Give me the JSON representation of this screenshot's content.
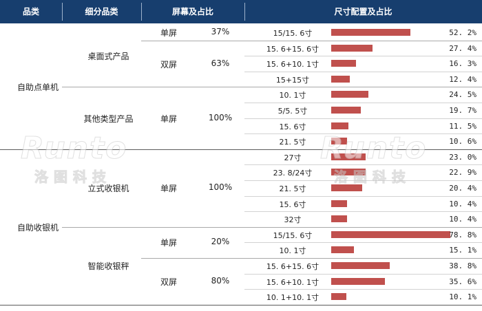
{
  "header": {
    "category": "品类",
    "subcategory": "细分品类",
    "screen": "屏幕及占比",
    "size_config": "尺寸配置及占比"
  },
  "colors": {
    "header_bg": "#173e6e",
    "bar": "#c0504d"
  },
  "watermark": {
    "brand": "Runto",
    "cn": "洛图科技"
  },
  "groups": [
    {
      "name": "自助点单机",
      "subs": [
        {
          "name": "桌面式产品",
          "screens": [
            {
              "type": "单屏",
              "share": "37%",
              "sizes": [
                {
                  "size": "15/15. 6寸",
                  "pct": "52. 2%",
                  "value": 52.2
                }
              ]
            },
            {
              "type": "双屏",
              "share": "63%",
              "sizes": [
                {
                  "size": "15. 6+15. 6寸",
                  "pct": "27. 4%",
                  "value": 27.4
                },
                {
                  "size": "15. 6+10. 1寸",
                  "pct": "16. 3%",
                  "value": 16.3
                },
                {
                  "size": "15+15寸",
                  "pct": "12. 4%",
                  "value": 12.4
                }
              ]
            }
          ]
        },
        {
          "name": "其他类型产品",
          "screens": [
            {
              "type": "单屏",
              "share": "100%",
              "sizes": [
                {
                  "size": "10. 1寸",
                  "pct": "24. 5%",
                  "value": 24.5
                },
                {
                  "size": "5/5. 5寸",
                  "pct": "19. 7%",
                  "value": 19.7
                },
                {
                  "size": "15. 6寸",
                  "pct": "11. 5%",
                  "value": 11.5
                },
                {
                  "size": "21. 5寸",
                  "pct": "10. 6%",
                  "value": 10.6
                }
              ]
            }
          ]
        }
      ]
    },
    {
      "name": "自助收银机",
      "subs": [
        {
          "name": "立式收银机",
          "screens": [
            {
              "type": "单屏",
              "share": "100%",
              "sizes": [
                {
                  "size": "27寸",
                  "pct": "23. 0%",
                  "value": 23.0
                },
                {
                  "size": "23. 8/24寸",
                  "pct": "22. 9%",
                  "value": 22.9
                },
                {
                  "size": "21. 5寸",
                  "pct": "20. 4%",
                  "value": 20.4
                },
                {
                  "size": "15. 6寸",
                  "pct": "10. 4%",
                  "value": 10.4
                },
                {
                  "size": "32寸",
                  "pct": "10. 4%",
                  "value": 10.4
                }
              ]
            }
          ]
        },
        {
          "name": "智能收银秤",
          "screens": [
            {
              "type": "单屏",
              "share": "20%",
              "sizes": [
                {
                  "size": "15/15. 6寸",
                  "pct": "78. 8%",
                  "value": 78.8
                },
                {
                  "size": "10. 1寸",
                  "pct": "15. 1%",
                  "value": 15.1
                }
              ]
            },
            {
              "type": "双屏",
              "share": "80%",
              "sizes": [
                {
                  "size": "15. 6+15. 6寸",
                  "pct": "38. 8%",
                  "value": 38.8
                },
                {
                  "size": "15. 6+10. 1寸",
                  "pct": "35. 6%",
                  "value": 35.6
                },
                {
                  "size": "10. 1+10. 1寸",
                  "pct": "10. 1%",
                  "value": 10.1
                }
              ]
            }
          ]
        }
      ]
    }
  ],
  "chart_data": {
    "type": "bar",
    "categories": [
      "15/15. 6寸",
      "15. 6+15. 6寸",
      "15. 6+10. 1寸",
      "15+15寸",
      "10. 1寸",
      "5/5. 5寸",
      "15. 6寸",
      "21. 5寸",
      "27寸",
      "23. 8/24寸",
      "21. 5寸",
      "15. 6寸",
      "32寸",
      "15/15. 6寸",
      "10. 1寸",
      "15. 6+15. 6寸",
      "15. 6+10. 1寸",
      "10. 1+10. 1寸"
    ],
    "values": [
      52.2,
      27.4,
      16.3,
      12.4,
      24.5,
      19.7,
      11.5,
      10.6,
      23.0,
      22.9,
      20.4,
      10.4,
      10.4,
      78.8,
      15.1,
      38.8,
      35.6,
      10.1
    ],
    "xlim": [
      0,
      78.8
    ],
    "orientation": "horizontal"
  }
}
